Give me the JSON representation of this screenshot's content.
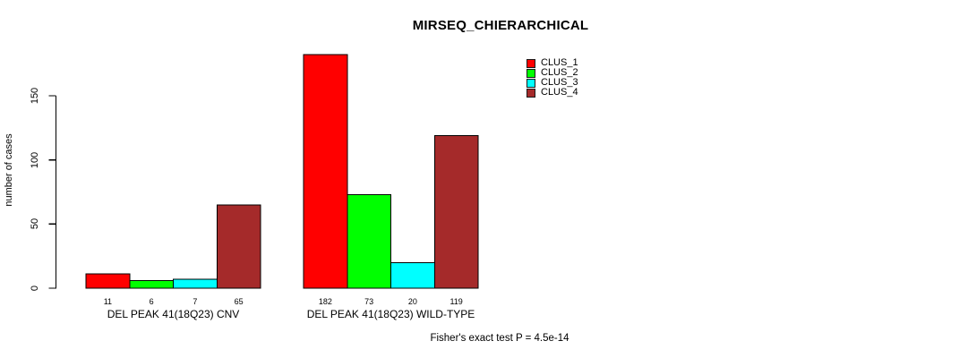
{
  "chart_data": {
    "type": "bar",
    "title": "MIRSEQ_CHIERARCHICAL",
    "ylabel": "number of cases",
    "xlabel": "",
    "categories": [
      "DEL PEAK 41(18Q23) CNV",
      "DEL PEAK 41(18Q23) WILD-TYPE"
    ],
    "series": [
      {
        "name": "CLUS_1",
        "color": "#FF0000",
        "values": [
          11,
          182
        ]
      },
      {
        "name": "CLUS_2",
        "color": "#00FF00",
        "values": [
          6,
          73
        ]
      },
      {
        "name": "CLUS_3",
        "color": "#00FFFF",
        "values": [
          7,
          20
        ]
      },
      {
        "name": "CLUS_4",
        "color": "#A52A2A",
        "values": [
          65,
          119
        ]
      }
    ],
    "bar_value_labels": [
      [
        11,
        6,
        7,
        65
      ],
      [
        182,
        73,
        20,
        119
      ]
    ],
    "yticks": [
      0,
      50,
      100,
      150
    ],
    "ylim": [
      0,
      150
    ],
    "grid": false,
    "legend_position": "top-right",
    "axis_color": "#000000",
    "bar_border_color": "#000000",
    "annotation": "Fisher's exact test P = 4.5e-14"
  }
}
